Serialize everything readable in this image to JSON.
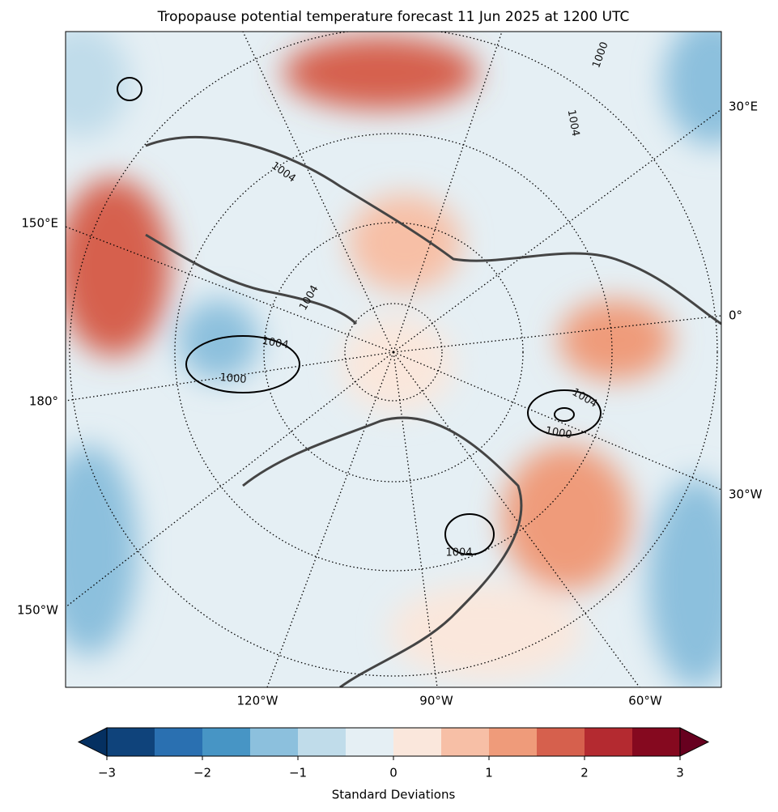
{
  "map": {
    "title": "Tropopause potential temperature forecast 11 Jun 2025 at 1200 UTC",
    "lon_labels": [
      "30°E",
      "150°E",
      "0°",
      "180°",
      "30°W",
      "150°W",
      "120°W",
      "90°W",
      "60°W"
    ],
    "contour_labels": [
      "1004",
      "1004",
      "1004",
      "1000",
      "1004",
      "1000",
      "1004",
      "1000",
      "1004"
    ]
  },
  "colorbar": {
    "levels": [
      -3,
      -2.5,
      -2,
      -1.5,
      -1,
      -0.5,
      0,
      0.5,
      1,
      1.5,
      2,
      2.5,
      3
    ],
    "colors": [
      "#0f437b",
      "#2a70b1",
      "#4795c5",
      "#8cc0dd",
      "#c0dcea",
      "#e5eff4",
      "#fae7dc",
      "#f7bfa6",
      "#ef9b7a",
      "#d6604d",
      "#b42a30",
      "#85091f"
    ],
    "extend_colors": [
      "#053061",
      "#67001f"
    ],
    "ticks": [
      {
        "value": -3,
        "label": "−3"
      },
      {
        "value": -2,
        "label": "−2"
      },
      {
        "value": -1,
        "label": "−1"
      },
      0,
      1,
      2,
      3
    ],
    "label": "Standard Deviations"
  }
}
